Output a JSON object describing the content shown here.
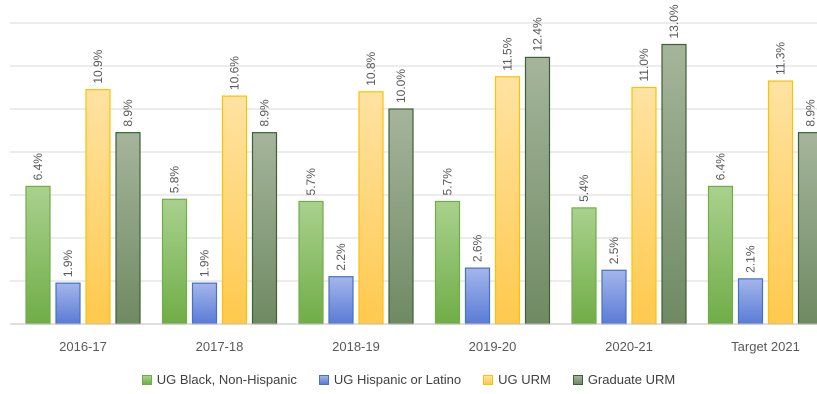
{
  "chart_data": {
    "type": "bar",
    "categories": [
      "2016-17",
      "2017-18",
      "2018-19",
      "2019-20",
      "2020-21",
      "Target 2021"
    ],
    "series": [
      {
        "name": "UG Black, Non-Hispanic",
        "values": [
          6.4,
          5.8,
          5.7,
          5.7,
          5.4,
          6.4
        ],
        "labels": [
          "6.4%",
          "5.8%",
          "5.7%",
          "5.7%",
          "5.4%",
          "6.4%"
        ],
        "color": "#a9d18e",
        "color_dark": "#70ad47",
        "stroke": "#70ad47"
      },
      {
        "name": "UG Hispanic or Latino",
        "values": [
          1.9,
          1.9,
          2.2,
          2.6,
          2.5,
          2.1
        ],
        "labels": [
          "1.9%",
          "1.9%",
          "2.2%",
          "2.6%",
          "2.5%",
          "2.1%"
        ],
        "color": "#a4b6ea",
        "color_dark": "#5a7bd6",
        "stroke": "#4472c4"
      },
      {
        "name": "UG URM",
        "values": [
          10.9,
          10.6,
          10.8,
          11.5,
          11.0,
          11.3
        ],
        "labels": [
          "10.9%",
          "10.6%",
          "10.8%",
          "11.5%",
          "11.0%",
          "11.3%"
        ],
        "color": "#ffe3a3",
        "color_dark": "#ffc94d",
        "stroke": "#ffc000"
      },
      {
        "name": "Graduate URM",
        "values": [
          8.9,
          8.9,
          10.0,
          12.4,
          13.0,
          8.9
        ],
        "labels": [
          "8.9%",
          "8.9%",
          "10.0%",
          "12.4%",
          "13.0%",
          "8.9%"
        ],
        "color": "#a5b59b",
        "color_dark": "#6f8a63",
        "stroke": "#3f5f36"
      }
    ],
    "ylim": [
      0,
      14
    ],
    "grid": true,
    "legend": "bottom",
    "title": "",
    "xlabel": "",
    "ylabel": ""
  }
}
